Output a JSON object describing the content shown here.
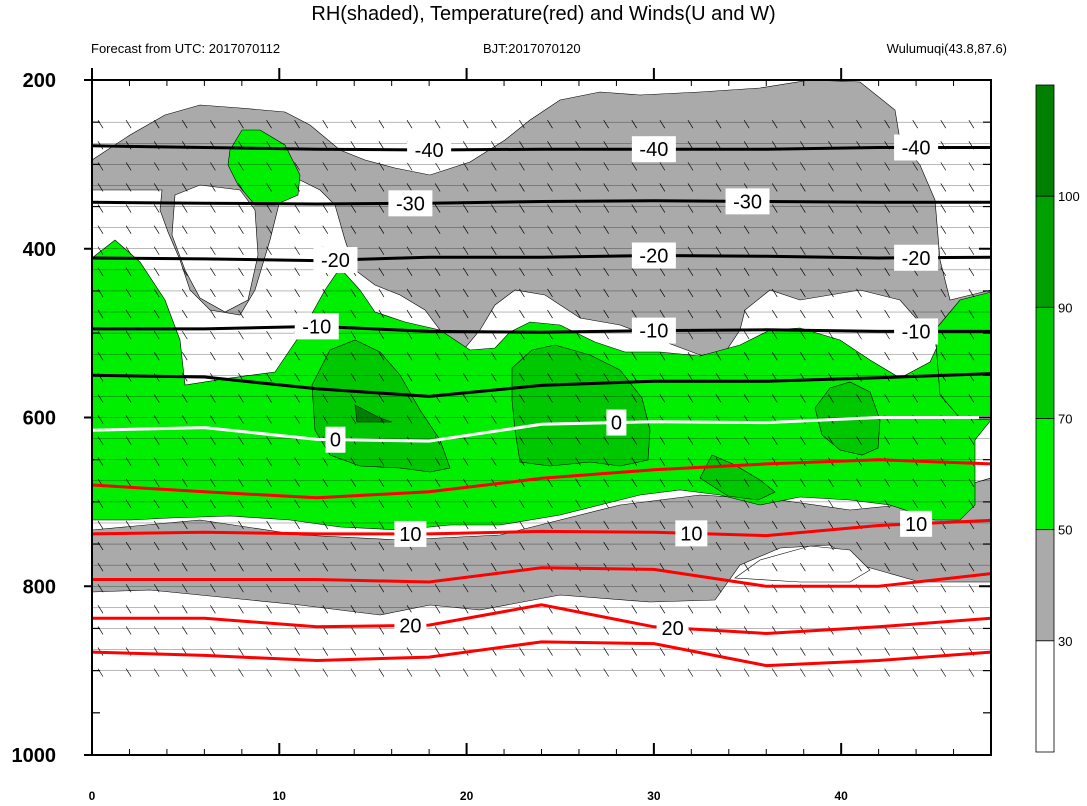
{
  "chart_data": {
    "type": "contour",
    "title": "RH(shaded), Temperature(red) and Winds(U and W)",
    "subtitles": {
      "left": "Forecast from UTC: 2017070112",
      "center": "BJT:2017070120",
      "right": "Wulumuqi(43.8,87.6)"
    },
    "x_axis": {
      "ticks": [
        0,
        10,
        20,
        30,
        40
      ],
      "range": [
        0,
        48
      ]
    },
    "y_axis": {
      "ticks": [
        200,
        400,
        600,
        800,
        1000
      ],
      "range": [
        200,
        1000
      ],
      "reversed": true
    },
    "colorbar": {
      "ticks": [
        "30",
        "50",
        "70",
        "90",
        "100"
      ],
      "levels": [
        30,
        50,
        70,
        90,
        100
      ],
      "colors": [
        "#ffffff",
        "#aaaaaa",
        "#00ee00",
        "#00c800",
        "#00a000",
        "#008000"
      ]
    },
    "temperature_contour_labels": [
      "-40",
      "-30",
      "-20",
      "-10",
      "0",
      "10",
      "20"
    ],
    "temperature_contours": [
      {
        "label": "-40",
        "color": "#000000",
        "x": [
          0,
          6,
          12,
          18,
          24,
          30,
          36,
          42,
          48
        ],
        "p": [
          278,
          280,
          282,
          283,
          282,
          282,
          282,
          280,
          280
        ]
      },
      {
        "label": "-30",
        "color": "#000000",
        "x": [
          0,
          6,
          12,
          18,
          24,
          30,
          36,
          42,
          48
        ],
        "p": [
          345,
          346,
          347,
          346,
          344,
          343,
          344,
          345,
          345
        ]
      },
      {
        "label": "-20",
        "color": "#000000",
        "x": [
          0,
          6,
          12,
          18,
          24,
          30,
          36,
          42,
          48
        ],
        "p": [
          411,
          412,
          414,
          410,
          410,
          408,
          409,
          411,
          410
        ]
      },
      {
        "label": "-10",
        "color": "#000000",
        "x": [
          0,
          6,
          12,
          18,
          24,
          30,
          36,
          42,
          48
        ],
        "p": [
          495,
          495,
          492,
          498,
          499,
          497,
          496,
          498,
          498
        ]
      },
      {
        "label": "",
        "color": "#000000",
        "x": [
          0,
          6,
          12,
          18,
          24,
          30,
          36,
          42,
          48
        ],
        "p": [
          550,
          552,
          566,
          575,
          562,
          557,
          557,
          553,
          548
        ]
      },
      {
        "label": "0",
        "color": "#ffffff",
        "x": [
          0,
          6,
          12,
          18,
          24,
          30,
          36,
          42,
          48
        ],
        "p": [
          615,
          612,
          626,
          628,
          608,
          605,
          606,
          600,
          600
        ]
      },
      {
        "label": "",
        "color": "#ff0000",
        "x": [
          0,
          6,
          12,
          18,
          24,
          30,
          36,
          42,
          48
        ],
        "p": [
          680,
          688,
          695,
          688,
          672,
          662,
          655,
          650,
          655
        ]
      },
      {
        "label": "10",
        "color": "#ff0000",
        "x": [
          0,
          6,
          12,
          18,
          24,
          30,
          36,
          42,
          48
        ],
        "p": [
          738,
          736,
          738,
          738,
          735,
          736,
          740,
          728,
          722
        ]
      },
      {
        "label": "",
        "color": "#ff0000",
        "x": [
          0,
          6,
          12,
          18,
          24,
          30,
          36,
          42,
          48
        ],
        "p": [
          792,
          792,
          792,
          795,
          778,
          780,
          800,
          800,
          785
        ]
      },
      {
        "label": "20",
        "color": "#ff0000",
        "x": [
          0,
          6,
          12,
          18,
          24,
          30,
          36,
          42,
          48
        ],
        "p": [
          838,
          838,
          848,
          846,
          822,
          848,
          856,
          848,
          838
        ]
      },
      {
        "label": "",
        "color": "#ff0000",
        "x": [
          0,
          6,
          12,
          18,
          24,
          30,
          36,
          42,
          48
        ],
        "p": [
          878,
          882,
          888,
          884,
          866,
          868,
          894,
          888,
          878
        ]
      }
    ],
    "rh_shading_note": "gray RH 30-50 upper and lower bands, green RH >50 mid-levels"
  }
}
